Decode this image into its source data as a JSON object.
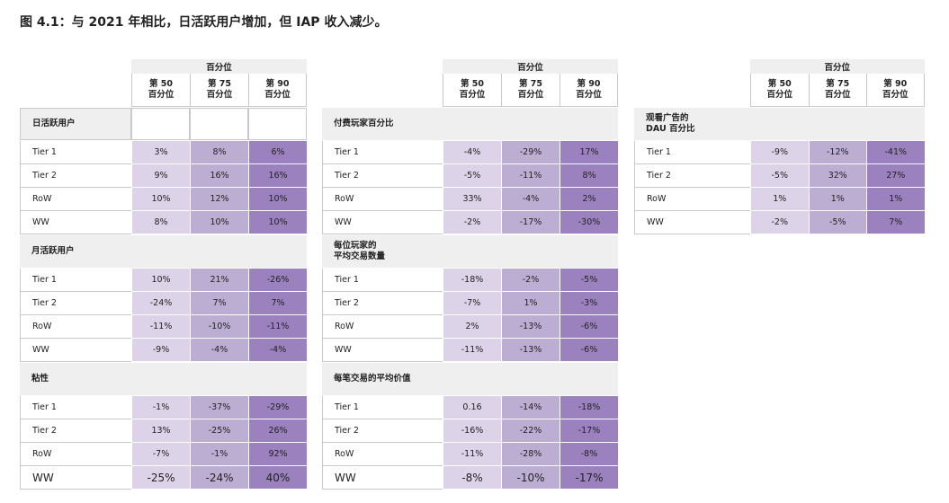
{
  "title": "图 4.1：与 2021 年相比，日活跃用户增加，但 IAP 收入减少。",
  "panels": [
    {
      "group_header": "百分位",
      "columns": [
        {
          "rank": "第 50",
          "unit": "百分位"
        },
        {
          "rank": "第 75",
          "unit": "百分位"
        },
        {
          "rank": "第 90",
          "unit": "百分位"
        }
      ],
      "sections": [
        {
          "title": [
            "日活跃用户"
          ],
          "rows": [
            {
              "label": "Tier 1",
              "values": [
                "3%",
                "8%",
                "6%"
              ]
            },
            {
              "label": "Tier 2",
              "values": [
                "9%",
                "16%",
                "16%"
              ]
            },
            {
              "label": "RoW",
              "values": [
                "10%",
                "12%",
                "10%"
              ]
            },
            {
              "label": "WW",
              "values": [
                "8%",
                "10%",
                "10%"
              ]
            }
          ]
        },
        {
          "title": [
            "月活跃用户"
          ],
          "rows": [
            {
              "label": "Tier 1",
              "values": [
                "10%",
                "21%",
                "-26%"
              ]
            },
            {
              "label": "Tier 2",
              "values": [
                "-24%",
                "7%",
                "7%"
              ]
            },
            {
              "label": "RoW",
              "values": [
                "-11%",
                "-10%",
                "-11%"
              ]
            },
            {
              "label": "WW",
              "values": [
                "-9%",
                "-4%",
                "-4%"
              ]
            }
          ]
        },
        {
          "title": [
            "粘性"
          ],
          "rows": [
            {
              "label": "Tier 1",
              "values": [
                "-1%",
                "-37%",
                "-29%"
              ]
            },
            {
              "label": "Tier 2",
              "values": [
                "13%",
                "-25%",
                "26%"
              ]
            },
            {
              "label": "RoW",
              "values": [
                "-7%",
                "-1%",
                "92%"
              ]
            },
            {
              "label": "WW",
              "values": [
                "-25%",
                "-24%",
                "40%"
              ]
            }
          ]
        }
      ]
    },
    {
      "group_header": "百分位",
      "columns": [
        {
          "rank": "第 50",
          "unit": "百分位"
        },
        {
          "rank": "第 75",
          "unit": "百分位"
        },
        {
          "rank": "第 90",
          "unit": "百分位"
        }
      ],
      "sections": [
        {
          "title": [
            "付费玩家百分比"
          ],
          "rows": [
            {
              "label": "Tier 1",
              "values": [
                "-4%",
                "-29%",
                "17%"
              ]
            },
            {
              "label": "Tier 2",
              "values": [
                "-5%",
                "-11%",
                "8%"
              ]
            },
            {
              "label": "RoW",
              "values": [
                "33%",
                "-4%",
                "2%"
              ]
            },
            {
              "label": "WW",
              "values": [
                "-2%",
                "-17%",
                "-30%"
              ]
            }
          ]
        },
        {
          "title": [
            "每位玩家的",
            "平均交易数量"
          ],
          "rows": [
            {
              "label": "Tier 1",
              "values": [
                "-18%",
                "-2%",
                "-5%"
              ]
            },
            {
              "label": "Tier 2",
              "values": [
                "-7%",
                "1%",
                "-3%"
              ]
            },
            {
              "label": "RoW",
              "values": [
                "2%",
                "-13%",
                "-6%"
              ]
            },
            {
              "label": "WW",
              "values": [
                "-11%",
                "-13%",
                "-6%"
              ]
            }
          ]
        },
        {
          "title": [
            "每笔交易的平均价值"
          ],
          "rows": [
            {
              "label": "Tier 1",
              "values": [
                "0.16",
                "-14%",
                "-18%"
              ]
            },
            {
              "label": "Tier 2",
              "values": [
                "-16%",
                "-22%",
                "-17%"
              ]
            },
            {
              "label": "RoW",
              "values": [
                "-11%",
                "-28%",
                "-8%"
              ]
            },
            {
              "label": "WW",
              "values": [
                "-8%",
                "-10%",
                "-17%"
              ]
            }
          ]
        }
      ]
    },
    {
      "group_header": "百分位",
      "columns": [
        {
          "rank": "第 50",
          "unit": "百分位"
        },
        {
          "rank": "第 75",
          "unit": "百分位"
        },
        {
          "rank": "第 90",
          "unit": "百分位"
        }
      ],
      "sections": [
        {
          "title": [
            "观看广告的",
            "DAU 百分比"
          ],
          "rows": [
            {
              "label": "Tier 1",
              "values": [
                "-9%",
                "-12%",
                "-41%"
              ]
            },
            {
              "label": "Tier 2",
              "values": [
                "-5%",
                "32%",
                "27%"
              ]
            },
            {
              "label": "RoW",
              "values": [
                "1%",
                "1%",
                "1%"
              ]
            },
            {
              "label": "WW",
              "values": [
                "-2%",
                "-5%",
                "7%"
              ]
            }
          ]
        }
      ]
    }
  ]
}
